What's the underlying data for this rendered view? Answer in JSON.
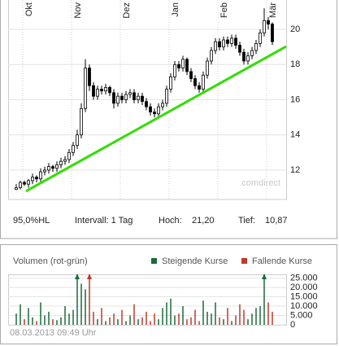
{
  "chart_data": [
    {
      "type": "candlestick",
      "month_labels": [
        {
          "label": "Okt",
          "index": 2
        },
        {
          "label": "Nov",
          "index": 14
        },
        {
          "label": "Dez",
          "index": 26
        },
        {
          "label": "Jan",
          "index": 38
        },
        {
          "label": "Feb",
          "index": 50
        },
        {
          "label": "Mär",
          "index": 62
        }
      ],
      "open": [
        10.9,
        11.0,
        11.3,
        11.2,
        11.4,
        11.6,
        11.5,
        11.9,
        12.0,
        12.2,
        12.1,
        12.3,
        12.5,
        12.6,
        13.0,
        13.4,
        14.0,
        15.5,
        17.8,
        16.8,
        16.2,
        16.6,
        16.5,
        16.7,
        16.4,
        15.8,
        16.2,
        16.0,
        16.3,
        16.4,
        16.0,
        16.2,
        15.9,
        15.6,
        15.3,
        15.2,
        15.6,
        15.8,
        16.6,
        17.3,
        18.0,
        17.8,
        18.3,
        17.6,
        17.2,
        16.8,
        16.6,
        17.4,
        18.2,
        18.8,
        19.3,
        19.0,
        19.4,
        19.2,
        19.5,
        19.1,
        18.7,
        18.2,
        18.5,
        18.8,
        19.2,
        19.8,
        20.5,
        20.3
      ],
      "close": [
        11.0,
        11.3,
        11.2,
        11.4,
        11.6,
        11.5,
        11.9,
        12.0,
        12.2,
        12.1,
        12.3,
        12.5,
        12.6,
        13.0,
        13.4,
        14.0,
        15.5,
        17.8,
        16.8,
        16.2,
        16.6,
        16.5,
        16.7,
        16.4,
        15.8,
        16.2,
        16.0,
        16.3,
        16.4,
        16.0,
        16.2,
        15.9,
        15.6,
        15.3,
        15.2,
        15.6,
        15.8,
        16.6,
        17.3,
        18.0,
        17.8,
        18.3,
        17.6,
        17.2,
        16.8,
        16.6,
        17.4,
        18.2,
        18.8,
        19.3,
        19.0,
        19.4,
        19.2,
        19.5,
        19.1,
        18.7,
        18.2,
        18.5,
        18.8,
        19.2,
        19.8,
        20.5,
        20.3,
        19.3
      ],
      "high": [
        11.2,
        11.4,
        11.4,
        11.5,
        11.8,
        11.7,
        12.1,
        12.2,
        12.4,
        12.3,
        12.5,
        12.7,
        12.8,
        13.2,
        13.6,
        14.3,
        15.8,
        18.3,
        18.0,
        17.0,
        16.8,
        16.8,
        16.9,
        16.8,
        16.6,
        16.4,
        16.4,
        16.5,
        16.6,
        16.6,
        16.4,
        16.4,
        16.1,
        15.8,
        15.5,
        15.8,
        16.0,
        16.8,
        17.5,
        18.2,
        18.2,
        18.5,
        18.4,
        17.8,
        17.4,
        17.0,
        17.6,
        18.4,
        19.0,
        19.5,
        19.5,
        19.6,
        19.6,
        19.7,
        19.7,
        19.3,
        18.9,
        18.7,
        19.0,
        19.4,
        20.0,
        21.2,
        20.7,
        20.4
      ],
      "low": [
        10.87,
        10.9,
        11.1,
        11.0,
        11.2,
        11.3,
        11.3,
        11.7,
        11.8,
        11.9,
        11.9,
        12.1,
        12.3,
        12.4,
        12.8,
        13.2,
        13.8,
        15.3,
        16.5,
        16.0,
        16.0,
        16.3,
        16.3,
        16.2,
        15.5,
        15.6,
        15.8,
        15.8,
        16.1,
        15.8,
        15.8,
        15.7,
        15.4,
        15.1,
        15.0,
        15.0,
        15.4,
        15.6,
        16.4,
        17.1,
        17.6,
        17.6,
        17.4,
        17.0,
        16.6,
        16.4,
        16.4,
        17.2,
        18.0,
        18.6,
        18.8,
        18.8,
        19.0,
        19.0,
        18.9,
        18.5,
        18.0,
        18.0,
        18.3,
        18.6,
        19.0,
        19.6,
        20.0,
        19.1
      ],
      "up_color": "#ffffff",
      "down_color": "#000000",
      "ylim": [
        10.33,
        21.67
      ],
      "yticks": [
        12,
        14,
        16,
        18,
        20
      ],
      "grid": true,
      "trendline": {
        "from_index": 2.4,
        "from_value": 10.8,
        "to_index": 66.4,
        "to_value": 19.03,
        "color": "#33dd00"
      },
      "watermark": ".comdirect",
      "footer": [
        "95,0%HL",
        "Intervall: 1 Tag",
        "Hoch:",
        "21,20",
        "Tief:",
        "10,87"
      ]
    },
    {
      "type": "volume",
      "title": "Volumen (rot-grün)",
      "series": [
        {
          "name": "Steigende Kurse",
          "color": "#1a6b3c"
        },
        {
          "name": "Fallende Kurse",
          "color": "#c0392b"
        }
      ],
      "values": [
        6000,
        11000,
        3000,
        9000,
        4000,
        2000,
        12000,
        5000,
        7000,
        3000,
        2500,
        4000,
        10000,
        6000,
        8000,
        28000,
        22000,
        19000,
        28000,
        7000,
        3000,
        9000,
        2000,
        4000,
        6000,
        3000,
        8000,
        2000,
        5000,
        11000,
        3000,
        4000,
        7000,
        2000,
        6000,
        3000,
        9000,
        12000,
        14000,
        5000,
        6000,
        10000,
        3000,
        4000,
        8000,
        2000,
        13000,
        7000,
        6000,
        12000,
        4000,
        3000,
        9000,
        2000,
        5000,
        11000,
        8000,
        3000,
        6000,
        9000,
        10000,
        28000,
        12000,
        7000
      ],
      "ylim": [
        0,
        27000
      ],
      "yticks": [
        0,
        {
          "value": 5000,
          "label": "5.000"
        },
        {
          "value": 10000,
          "label": "10.000"
        },
        {
          "value": 15000,
          "label": "15.000"
        },
        {
          "value": 20000,
          "label": "20.000"
        },
        {
          "value": 25000,
          "label": "25.000"
        }
      ],
      "timestamp": "08.03.2013 09:49 Uhr"
    }
  ]
}
